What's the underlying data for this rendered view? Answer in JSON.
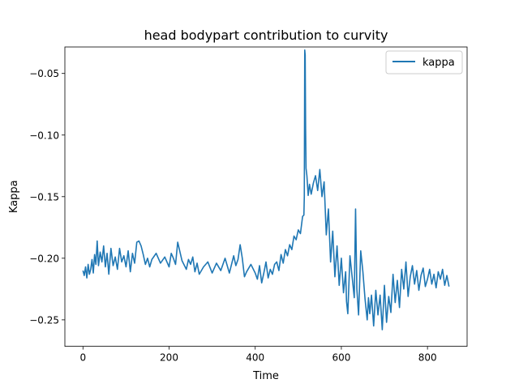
{
  "chart_data": {
    "type": "line",
    "title": "head bodypart contribution to curvity",
    "xlabel": "Time",
    "ylabel": "Kappa",
    "xlim": [
      -42,
      892
    ],
    "ylim": [
      -0.2715,
      -0.0285
    ],
    "xticks": [
      0,
      200,
      400,
      600,
      800
    ],
    "yticks": [
      -0.25,
      -0.2,
      -0.15,
      -0.1,
      -0.05
    ],
    "xtick_labels": [
      "0",
      "200",
      "400",
      "600",
      "800"
    ],
    "ytick_labels": [
      "−0.25",
      "−0.20",
      "−0.15",
      "−0.10",
      "−0.05"
    ],
    "grid": false,
    "legend_position": "top-right",
    "series": [
      {
        "name": "kappa",
        "color": "#1f77b4",
        "x": [
          0,
          3,
          6,
          9,
          12,
          15,
          18,
          21,
          24,
          27,
          30,
          33,
          36,
          40,
          44,
          48,
          52,
          56,
          60,
          65,
          70,
          75,
          80,
          85,
          90,
          95,
          100,
          105,
          110,
          115,
          120,
          125,
          130,
          135,
          140,
          145,
          150,
          155,
          160,
          170,
          180,
          190,
          200,
          205,
          210,
          215,
          220,
          230,
          240,
          245,
          250,
          255,
          260,
          265,
          270,
          280,
          290,
          300,
          310,
          320,
          330,
          340,
          350,
          355,
          360,
          365,
          370,
          375,
          380,
          390,
          400,
          405,
          410,
          415,
          420,
          425,
          430,
          435,
          440,
          445,
          450,
          455,
          460,
          465,
          470,
          475,
          480,
          485,
          490,
          495,
          500,
          505,
          510,
          513,
          514,
          515,
          516,
          517,
          518,
          520,
          523,
          526,
          530,
          535,
          540,
          545,
          550,
          555,
          560,
          565,
          570,
          575,
          580,
          585,
          590,
          595,
          600,
          605,
          610,
          612,
          615,
          620,
          625,
          630,
          633,
          636,
          640,
          645,
          650,
          655,
          660,
          663,
          666,
          670,
          675,
          680,
          685,
          690,
          695,
          700,
          705,
          710,
          715,
          720,
          725,
          730,
          735,
          740,
          745,
          750,
          755,
          760,
          765,
          770,
          775,
          780,
          785,
          790,
          795,
          800,
          805,
          810,
          815,
          820,
          825,
          830,
          835,
          840,
          845,
          850
        ],
        "y": [
          -0.21,
          -0.214,
          -0.207,
          -0.216,
          -0.205,
          -0.213,
          -0.209,
          -0.201,
          -0.212,
          -0.197,
          -0.205,
          -0.186,
          -0.206,
          -0.195,
          -0.203,
          -0.19,
          -0.207,
          -0.196,
          -0.213,
          -0.192,
          -0.206,
          -0.199,
          -0.209,
          -0.192,
          -0.203,
          -0.198,
          -0.207,
          -0.194,
          -0.211,
          -0.196,
          -0.204,
          -0.187,
          -0.186,
          -0.19,
          -0.197,
          -0.205,
          -0.2,
          -0.207,
          -0.201,
          -0.196,
          -0.204,
          -0.199,
          -0.207,
          -0.196,
          -0.2,
          -0.205,
          -0.187,
          -0.202,
          -0.209,
          -0.201,
          -0.205,
          -0.199,
          -0.211,
          -0.204,
          -0.213,
          -0.207,
          -0.203,
          -0.212,
          -0.204,
          -0.21,
          -0.2,
          -0.212,
          -0.198,
          -0.206,
          -0.201,
          -0.189,
          -0.2,
          -0.215,
          -0.211,
          -0.205,
          -0.212,
          -0.217,
          -0.206,
          -0.22,
          -0.212,
          -0.203,
          -0.216,
          -0.209,
          -0.213,
          -0.205,
          -0.203,
          -0.21,
          -0.197,
          -0.204,
          -0.193,
          -0.198,
          -0.189,
          -0.193,
          -0.182,
          -0.185,
          -0.177,
          -0.18,
          -0.166,
          -0.165,
          -0.15,
          -0.031,
          -0.035,
          -0.095,
          -0.127,
          -0.133,
          -0.149,
          -0.14,
          -0.148,
          -0.139,
          -0.133,
          -0.145,
          -0.128,
          -0.15,
          -0.138,
          -0.181,
          -0.16,
          -0.203,
          -0.178,
          -0.215,
          -0.19,
          -0.222,
          -0.2,
          -0.228,
          -0.211,
          -0.235,
          -0.245,
          -0.198,
          -0.215,
          -0.232,
          -0.16,
          -0.225,
          -0.246,
          -0.194,
          -0.211,
          -0.233,
          -0.25,
          -0.232,
          -0.245,
          -0.23,
          -0.255,
          -0.226,
          -0.246,
          -0.23,
          -0.258,
          -0.222,
          -0.252,
          -0.231,
          -0.244,
          -0.213,
          -0.236,
          -0.218,
          -0.24,
          -0.209,
          -0.225,
          -0.203,
          -0.231,
          -0.215,
          -0.206,
          -0.221,
          -0.21,
          -0.226,
          -0.214,
          -0.208,
          -0.223,
          -0.217,
          -0.209,
          -0.221,
          -0.213,
          -0.224,
          -0.211,
          -0.217,
          -0.209,
          -0.222,
          -0.214,
          -0.223
        ]
      }
    ]
  }
}
